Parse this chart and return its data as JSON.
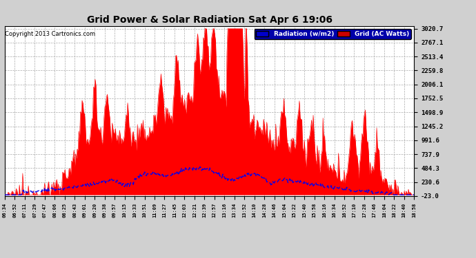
{
  "title": "Grid Power & Solar Radiation Sat Apr 6 19:06",
  "copyright": "Copyright 2013 Cartronics.com",
  "legend_radiation": "Radiation (w/m2)",
  "legend_grid": "Grid (AC Watts)",
  "yticks": [
    3020.7,
    2767.1,
    2513.4,
    2259.8,
    2006.1,
    1752.5,
    1498.9,
    1245.2,
    991.6,
    737.9,
    484.3,
    230.6,
    -23.0
  ],
  "ymin": -23.0,
  "ymax": 3020.7,
  "background_color": "#d0d0d0",
  "plot_bg_color": "#ffffff",
  "grid_color": "#aaaaaa",
  "title_color": "#000000",
  "radiation_color": "#0000ee",
  "grid_fill_color": "#ff0000",
  "xtick_labels": [
    "06:34",
    "06:52",
    "07:11",
    "07:29",
    "07:47",
    "08:06",
    "08:25",
    "08:43",
    "09:01",
    "09:20",
    "09:38",
    "09:57",
    "10:15",
    "10:33",
    "10:51",
    "11:09",
    "11:27",
    "11:45",
    "12:03",
    "12:21",
    "12:39",
    "12:57",
    "13:16",
    "13:34",
    "13:52",
    "14:10",
    "14:28",
    "14:46",
    "15:04",
    "15:22",
    "15:40",
    "15:58",
    "16:16",
    "16:34",
    "16:52",
    "17:10",
    "17:28",
    "17:46",
    "18:04",
    "18:22",
    "18:40",
    "18:58"
  ],
  "n_points": 504
}
